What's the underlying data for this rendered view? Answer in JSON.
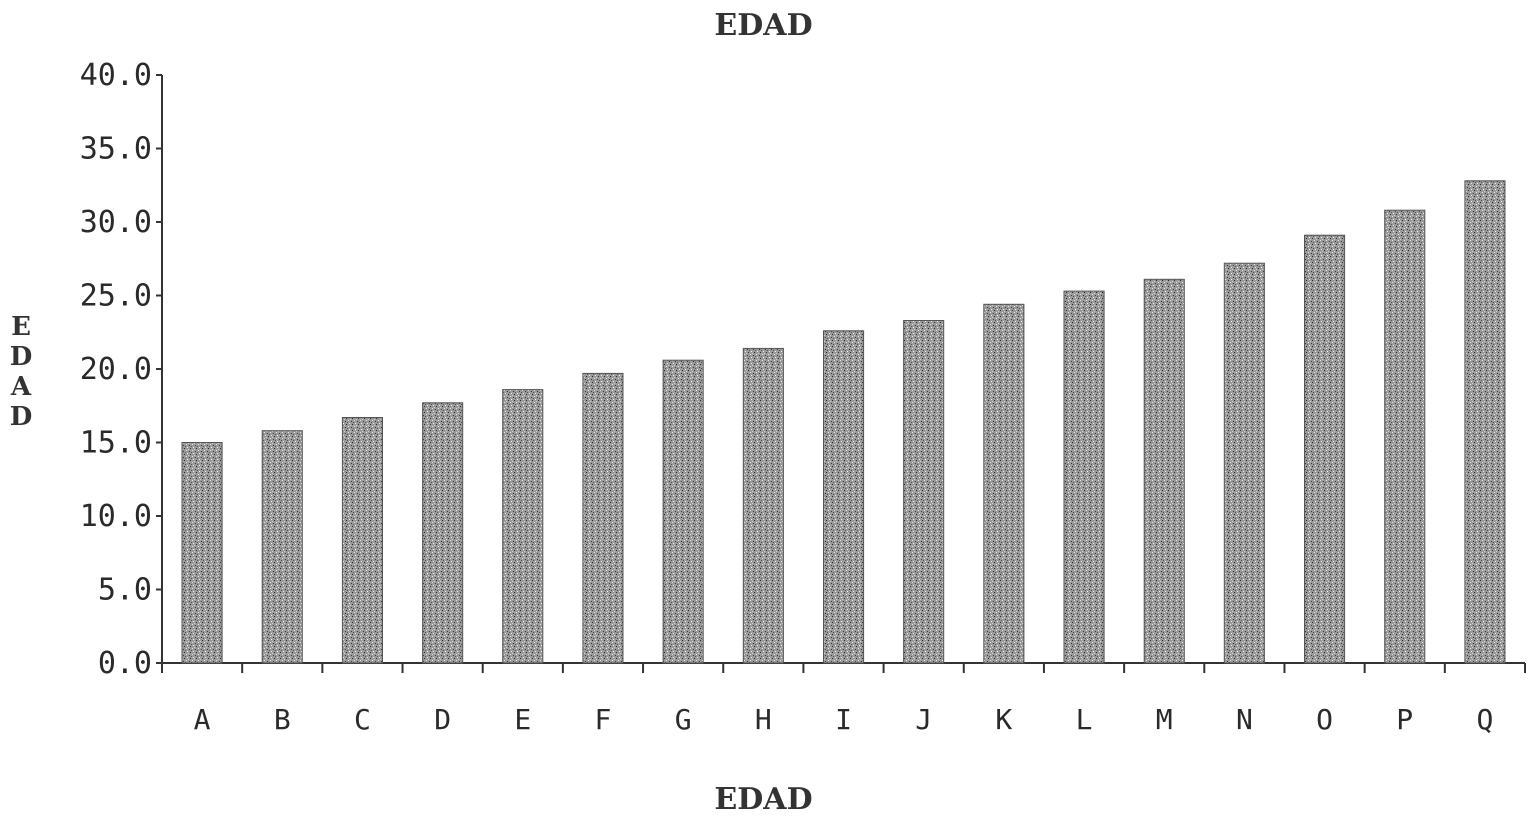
{
  "chart_data": {
    "type": "bar",
    "title": "EDAD",
    "xlabel": "EDAD",
    "ylabel": "EDAD",
    "categories": [
      "A",
      "B",
      "C",
      "D",
      "E",
      "F",
      "G",
      "H",
      "I",
      "J",
      "K",
      "L",
      "M",
      "N",
      "O",
      "P",
      "Q"
    ],
    "values": [
      15.0,
      15.8,
      16.7,
      17.7,
      18.6,
      19.7,
      20.6,
      21.4,
      22.6,
      23.3,
      24.4,
      25.3,
      26.1,
      27.2,
      29.1,
      30.8,
      32.8
    ],
    "yticks": [
      "0.0",
      "5.0",
      "10.0",
      "15.0",
      "20.0",
      "25.0",
      "30.0",
      "35.0",
      "40.0"
    ],
    "ylim": [
      0,
      40
    ],
    "grid": false,
    "legend": "none",
    "bar_color": "#8a8a8a"
  }
}
